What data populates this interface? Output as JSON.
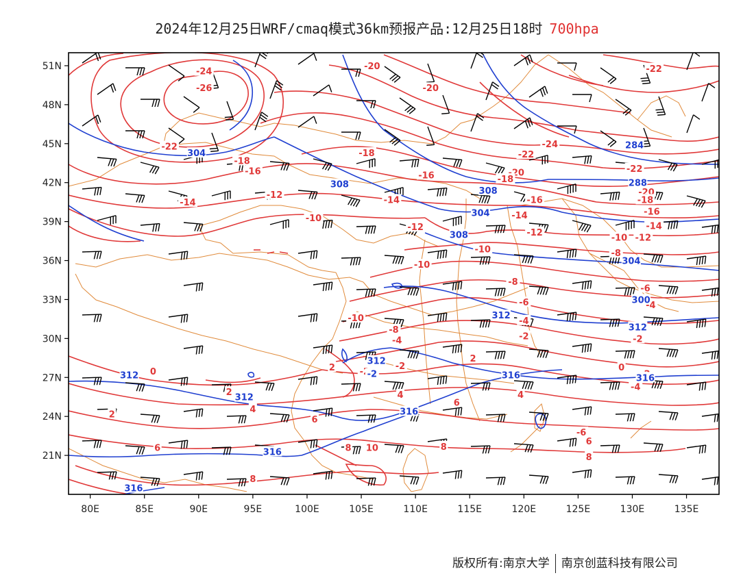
{
  "title": {
    "text": "2024年12月25日WRF/cmaq模式36km预报产品:12月25日18时",
    "level": "700hpa"
  },
  "colors": {
    "temperature": "#e03838",
    "height": "#1f3fd0",
    "border": "#e08a3a",
    "wind": "#000000",
    "frame": "#000000"
  },
  "axes": {
    "lon_labels": [
      "80E",
      "85E",
      "90E",
      "95E",
      "100E",
      "105E",
      "110E",
      "115E",
      "120E",
      "125E",
      "130E",
      "135E"
    ],
    "lon_values": [
      80,
      85,
      90,
      95,
      100,
      105,
      110,
      115,
      120,
      125,
      130,
      135
    ],
    "lat_labels": [
      "51N",
      "48N",
      "45N",
      "42N",
      "39N",
      "36N",
      "33N",
      "30N",
      "27N",
      "24N",
      "21N"
    ],
    "lat_values": [
      51,
      48,
      45,
      42,
      39,
      36,
      33,
      30,
      27,
      24,
      21
    ],
    "lon_range": [
      78,
      138
    ],
    "lat_range": [
      18,
      52
    ]
  },
  "map_data": {
    "type": "weather_map",
    "temperature_labels": [
      {
        "text": "-24",
        "lon": 90.5,
        "lat": 50.6
      },
      {
        "text": "-26",
        "lon": 90.5,
        "lat": 49.3
      },
      {
        "text": "-22",
        "lon": 87.3,
        "lat": 44.8
      },
      {
        "text": "-20",
        "lon": 106.0,
        "lat": 51.0
      },
      {
        "text": "-20",
        "lon": 111.4,
        "lat": 49.3
      },
      {
        "text": "-18",
        "lon": 94.0,
        "lat": 43.7
      },
      {
        "text": "-16",
        "lon": 95.0,
        "lat": 42.9
      },
      {
        "text": "-18",
        "lon": 105.5,
        "lat": 44.3
      },
      {
        "text": "-16",
        "lon": 111.0,
        "lat": 42.6
      },
      {
        "text": "-14",
        "lon": 89.0,
        "lat": 40.5
      },
      {
        "text": "-12",
        "lon": 97.0,
        "lat": 41.1
      },
      {
        "text": "-10",
        "lon": 100.6,
        "lat": 39.3
      },
      {
        "text": "-14",
        "lon": 107.8,
        "lat": 40.7
      },
      {
        "text": "-12",
        "lon": 110.0,
        "lat": 38.6
      },
      {
        "text": "-10",
        "lon": 110.6,
        "lat": 35.7
      },
      {
        "text": "-10",
        "lon": 116.2,
        "lat": 36.9
      },
      {
        "text": "-20",
        "lon": 119.3,
        "lat": 42.8
      },
      {
        "text": "-18",
        "lon": 118.3,
        "lat": 42.3
      },
      {
        "text": "-16",
        "lon": 121.0,
        "lat": 40.7
      },
      {
        "text": "-14",
        "lon": 119.6,
        "lat": 39.5
      },
      {
        "text": "-12",
        "lon": 121.0,
        "lat": 38.2
      },
      {
        "text": "-22",
        "lon": 120.2,
        "lat": 44.2
      },
      {
        "text": "-24",
        "lon": 122.4,
        "lat": 45.0
      },
      {
        "text": "-22",
        "lon": 132.0,
        "lat": 50.8
      },
      {
        "text": "-22",
        "lon": 130.2,
        "lat": 43.1
      },
      {
        "text": "-20",
        "lon": 131.3,
        "lat": 41.3
      },
      {
        "text": "-18",
        "lon": 131.2,
        "lat": 40.7
      },
      {
        "text": "-16",
        "lon": 131.8,
        "lat": 39.8
      },
      {
        "text": "-14",
        "lon": 132.0,
        "lat": 38.7
      },
      {
        "text": "-12",
        "lon": 131.0,
        "lat": 37.8
      },
      {
        "text": "-10",
        "lon": 128.8,
        "lat": 37.8
      },
      {
        "text": "-8",
        "lon": 128.5,
        "lat": 36.6
      },
      {
        "text": "-6",
        "lon": 131.2,
        "lat": 33.9
      },
      {
        "text": "-4",
        "lon": 131.7,
        "lat": 32.6
      },
      {
        "text": "-2",
        "lon": 130.5,
        "lat": 30.0
      },
      {
        "text": "0",
        "lon": 129.0,
        "lat": 27.8
      },
      {
        "text": "-2",
        "lon": 131.2,
        "lat": 27.3
      },
      {
        "text": "-4",
        "lon": 130.3,
        "lat": 26.3
      },
      {
        "text": "-6",
        "lon": 125.3,
        "lat": 22.8
      },
      {
        "text": "-8",
        "lon": 119.0,
        "lat": 34.4
      },
      {
        "text": "-6",
        "lon": 120.0,
        "lat": 32.8
      },
      {
        "text": "-4",
        "lon": 120.0,
        "lat": 31.4
      },
      {
        "text": "-2",
        "lon": 120.0,
        "lat": 30.2
      },
      {
        "text": "-10",
        "lon": 104.5,
        "lat": 31.6
      },
      {
        "text": "-8",
        "lon": 108.0,
        "lat": 30.7
      },
      {
        "text": "-4",
        "lon": 108.3,
        "lat": 29.9
      },
      {
        "text": "2",
        "lon": 102.3,
        "lat": 27.8
      },
      {
        "text": "-2",
        "lon": 108.6,
        "lat": 27.9
      },
      {
        "text": "-2",
        "lon": 105.3,
        "lat": 27.5
      },
      {
        "text": "2",
        "lon": 115.3,
        "lat": 28.5
      },
      {
        "text": "4",
        "lon": 119.7,
        "lat": 25.7
      },
      {
        "text": "4",
        "lon": 108.6,
        "lat": 25.7
      },
      {
        "text": "6",
        "lon": 113.8,
        "lat": 25.1
      },
      {
        "text": "0",
        "lon": 85.8,
        "lat": 27.5
      },
      {
        "text": "2",
        "lon": 92.8,
        "lat": 25.9
      },
      {
        "text": "4",
        "lon": 95.0,
        "lat": 24.6
      },
      {
        "text": "2",
        "lon": 82.0,
        "lat": 24.2
      },
      {
        "text": "6",
        "lon": 86.2,
        "lat": 21.6
      },
      {
        "text": "6",
        "lon": 100.7,
        "lat": 23.8
      },
      {
        "text": "8",
        "lon": 103.8,
        "lat": 21.6
      },
      {
        "text": "10",
        "lon": 106.0,
        "lat": 21.6
      },
      {
        "text": "8",
        "lon": 112.6,
        "lat": 21.7
      },
      {
        "text": "8",
        "lon": 95.0,
        "lat": 19.2
      },
      {
        "text": "6",
        "lon": 126.0,
        "lat": 22.1
      },
      {
        "text": "8",
        "lon": 126.0,
        "lat": 20.9
      }
    ],
    "height_labels": [
      {
        "text": "304",
        "lon": 89.8,
        "lat": 44.3
      },
      {
        "text": "308",
        "lon": 103.0,
        "lat": 41.9
      },
      {
        "text": "308",
        "lon": 116.7,
        "lat": 41.4
      },
      {
        "text": "304",
        "lon": 116.0,
        "lat": 39.7
      },
      {
        "text": "308",
        "lon": 114.0,
        "lat": 38.0
      },
      {
        "text": "304",
        "lon": 129.9,
        "lat": 36.0
      },
      {
        "text": "300",
        "lon": 130.8,
        "lat": 33.0
      },
      {
        "text": "312",
        "lon": 117.9,
        "lat": 31.8
      },
      {
        "text": "312",
        "lon": 130.5,
        "lat": 30.9
      },
      {
        "text": "312",
        "lon": 106.4,
        "lat": 28.3
      },
      {
        "text": "316",
        "lon": 118.8,
        "lat": 27.2
      },
      {
        "text": "316",
        "lon": 131.2,
        "lat": 27.0
      },
      {
        "text": "312",
        "lon": 83.6,
        "lat": 27.2
      },
      {
        "text": "312",
        "lon": 94.2,
        "lat": 25.5
      },
      {
        "text": "316",
        "lon": 109.4,
        "lat": 24.4
      },
      {
        "text": "316",
        "lon": 96.8,
        "lat": 21.3
      },
      {
        "text": "316",
        "lon": 84.0,
        "lat": 18.5
      },
      {
        "text": "284",
        "lon": 130.2,
        "lat": 44.9
      },
      {
        "text": "288",
        "lon": 130.5,
        "lat": 42.0
      },
      {
        "text": "-2",
        "lon": 106.0,
        "lat": 27.3
      }
    ]
  },
  "footer": {
    "copyright": "版权所有:南京大学",
    "company": "南京创蓝科技有限公司"
  }
}
